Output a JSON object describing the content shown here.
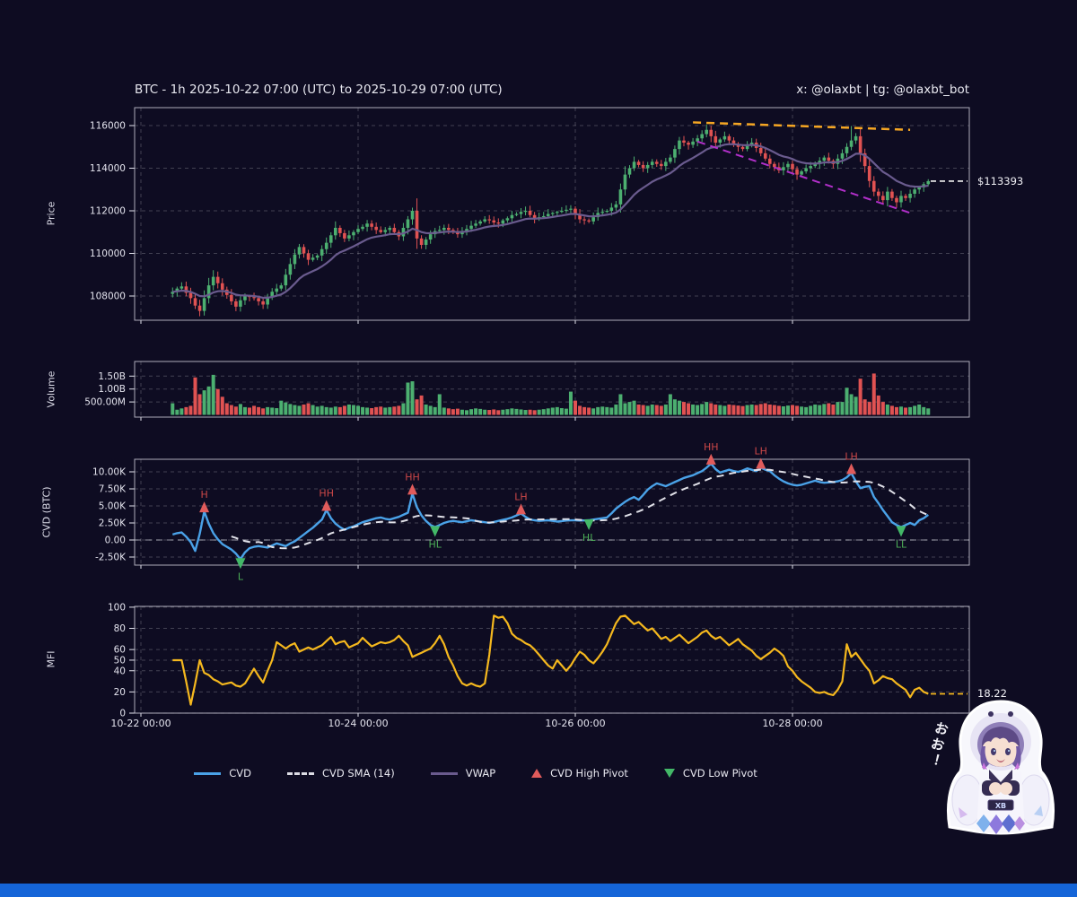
{
  "header": {
    "title": "BTC - 1h 2025-10-22 07:00 (UTC) to 2025-10-29 07:00 (UTC)",
    "handle": "x: @olaxbt | tg: @olaxbt_bot"
  },
  "panels": {
    "price": {
      "axis_title": "Price",
      "ticks": [
        {
          "v": 108000,
          "label": "108000"
        },
        {
          "v": 110000,
          "label": "110000"
        },
        {
          "v": 112000,
          "label": "112000"
        },
        {
          "v": 114000,
          "label": "114000"
        },
        {
          "v": 116000,
          "label": "116000"
        }
      ]
    },
    "volume": {
      "axis_title": "Volume",
      "ticks": [
        {
          "v": 500,
          "label": "500.00M"
        },
        {
          "v": 1000,
          "label": "1.00B"
        },
        {
          "v": 1500,
          "label": "1.50B"
        }
      ]
    },
    "cvd": {
      "axis_title": "CVD (BTC)",
      "ticks": [
        {
          "v": -2.5,
          "label": "-2.50K"
        },
        {
          "v": 0,
          "label": "0.00"
        },
        {
          "v": 2.5,
          "label": "2.50K"
        },
        {
          "v": 5,
          "label": "5.00K"
        },
        {
          "v": 7.5,
          "label": "7.50K"
        },
        {
          "v": 10,
          "label": "10.00K"
        }
      ]
    },
    "mfi": {
      "axis_title": "MFI",
      "ticks": [
        {
          "v": 0,
          "label": "0"
        },
        {
          "v": 20,
          "label": "20"
        },
        {
          "v": 40,
          "label": "40"
        },
        {
          "v": 50,
          "label": "50"
        },
        {
          "v": 60,
          "label": "60"
        },
        {
          "v": 80,
          "label": "80"
        },
        {
          "v": 100,
          "label": "100"
        }
      ]
    }
  },
  "x_axis": {
    "labels": [
      "10-22 00:00",
      "10-24 00:00",
      "10-26 00:00",
      "10-28 00:00"
    ]
  },
  "annotations": {
    "last_price": {
      "text": "$113393"
    },
    "mfi_last": {
      "text": "18.22"
    }
  },
  "legend": {
    "items": [
      {
        "label": "CVD",
        "swatch": "line",
        "color": "#4aa2e8"
      },
      {
        "label": "CVD SMA (14)",
        "swatch": "dashed-line",
        "color": "#dcdce4"
      },
      {
        "label": "VWAP",
        "swatch": "line",
        "color": "#6a5b8e"
      },
      {
        "label": "CVD High Pivot",
        "swatch": "triangle-up",
        "color": "#e05b5b"
      },
      {
        "label": "CVD Low Pivot",
        "swatch": "triangle-down",
        "color": "#43b868"
      }
    ]
  },
  "mascot": {
    "speech": "おお！",
    "badge": "XB"
  },
  "colors": {
    "background": "#0e0c22",
    "panel_border": "#c9c9d6",
    "grid": "rgba(255,255,255,0.22)",
    "text": "#e4e4ee",
    "candle_up": "#4caf70",
    "candle_down": "#e05252",
    "vwap": "#6a5b8e",
    "cvd": "#4aa2e8",
    "cvd_sma": "#e0e0e8",
    "pivot_high": "#e05b5b",
    "pivot_high_text": "#cc4848",
    "pivot_low": "#43b868",
    "pivot_low_text": "#4cae57",
    "mfi": "#f5b81e",
    "last_price_line": "#f2f2f2",
    "accent_bar": "#1565d8"
  },
  "chart_data": {
    "type": "multi-panel-financial",
    "symbol": "BTC",
    "interval": "1h",
    "range": "2025-10-22 07:00 (UTC) to 2025-10-29 07:00 (UTC)",
    "panels": [
      "price-candlestick-with-vwap",
      "volume-bar",
      "cvd-line-with-sma-and-pivots",
      "mfi-line"
    ],
    "x_grid_hours": [
      0,
      48,
      96,
      144
    ],
    "first_open": 108100,
    "last_price": 113393,
    "mfi_last": 18.22,
    "close": [
      108200,
      108350,
      108450,
      108150,
      107900,
      107550,
      107300,
      107900,
      108500,
      108900,
      108600,
      108300,
      108050,
      107750,
      107500,
      107800,
      108000,
      107950,
      107900,
      107750,
      107600,
      107950,
      108200,
      108350,
      108500,
      109000,
      109500,
      109950,
      110300,
      110000,
      109700,
      109800,
      109900,
      110200,
      110500,
      110850,
      111200,
      110950,
      110700,
      110850,
      111000,
      111150,
      111250,
      111400,
      111250,
      111100,
      111000,
      111100,
      111200,
      111000,
      110800,
      111200,
      111600,
      112000,
      110700,
      110400,
      110650,
      110900,
      111050,
      111100,
      111200,
      111100,
      111000,
      110900,
      111050,
      111150,
      111300,
      111400,
      111500,
      111600,
      111550,
      111450,
      111400,
      111550,
      111650,
      111800,
      111850,
      111950,
      112000,
      111800,
      111600,
      111700,
      111750,
      111850,
      111900,
      111950,
      112000,
      112050,
      112100,
      111850,
      111600,
      111550,
      111500,
      111700,
      111900,
      111950,
      112000,
      112150,
      112300,
      113000,
      113700,
      114000,
      114300,
      114150,
      114000,
      114150,
      114300,
      114200,
      114100,
      114300,
      114500,
      114900,
      115300,
      115200,
      115100,
      115250,
      115400,
      115600,
      115800,
      115500,
      115200,
      115350,
      115500,
      115300,
      115100,
      115000,
      114900,
      115050,
      115200,
      114950,
      114700,
      114450,
      114200,
      114050,
      113900,
      114050,
      114200,
      113950,
      113700,
      113850,
      114000,
      114100,
      114200,
      114350,
      114500,
      114350,
      114200,
      114450,
      114700,
      115000,
      115300,
      115500,
      114700,
      114100,
      113400,
      112900,
      112700,
      112500,
      112900,
      112600,
      112400,
      112700,
      112600,
      112800,
      113000,
      113100,
      113250,
      113393
    ],
    "wick_overrides": {
      "6": {
        "low": 107050
      },
      "53": {
        "high": 112150
      },
      "118": {
        "high": 116050
      },
      "150": {
        "high": 115980
      }
    },
    "volume_m": [
      450,
      200,
      250,
      300,
      350,
      1450,
      800,
      950,
      1100,
      1550,
      1000,
      700,
      450,
      380,
      320,
      420,
      300,
      280,
      350,
      300,
      250,
      300,
      280,
      260,
      550,
      480,
      420,
      380,
      350,
      400,
      450,
      380,
      320,
      350,
      300,
      280,
      320,
      300,
      350,
      400,
      380,
      350,
      300,
      280,
      260,
      300,
      320,
      280,
      300,
      320,
      350,
      450,
      1250,
      1300,
      600,
      750,
      400,
      350,
      300,
      800,
      280,
      250,
      220,
      240,
      200,
      180,
      220,
      250,
      230,
      200,
      190,
      210,
      180,
      200,
      220,
      250,
      230,
      210,
      190,
      200,
      180,
      200,
      220,
      250,
      280,
      300,
      260,
      240,
      900,
      550,
      350,
      300,
      280,
      250,
      300,
      320,
      300,
      280,
      400,
      800,
      450,
      500,
      550,
      400,
      380,
      350,
      400,
      380,
      350,
      400,
      800,
      600,
      550,
      500,
      450,
      400,
      380,
      420,
      500,
      450,
      400,
      380,
      350,
      400,
      380,
      360,
      340,
      380,
      400,
      380,
      420,
      450,
      400,
      380,
      350,
      330,
      360,
      380,
      350,
      320,
      300,
      350,
      400,
      380,
      420,
      450,
      400,
      500,
      500,
      1050,
      800,
      700,
      1400,
      600,
      500,
      1600,
      750,
      500,
      400,
      350,
      300,
      320,
      280,
      300,
      350,
      400,
      300,
      250
    ],
    "cvd_k": [
      0.8,
      1.0,
      1.1,
      0.5,
      -0.3,
      -1.6,
      0.9,
      4.2,
      2.4,
      1.0,
      0.1,
      -0.6,
      -1.0,
      -1.4,
      -2.0,
      -2.8,
      -1.8,
      -1.2,
      -1.0,
      -0.9,
      -1.0,
      -1.1,
      -0.8,
      -0.5,
      -0.7,
      -0.9,
      -0.5,
      -0.2,
      0.3,
      0.8,
      1.3,
      1.8,
      2.4,
      3.0,
      4.4,
      3.2,
      2.4,
      1.9,
      1.5,
      1.8,
      2.0,
      2.3,
      2.6,
      2.8,
      3.0,
      3.2,
      3.3,
      3.1,
      3.0,
      3.2,
      3.4,
      3.7,
      4.0,
      6.8,
      4.8,
      3.6,
      2.8,
      2.2,
      1.9,
      2.2,
      2.5,
      2.7,
      2.8,
      2.7,
      2.6,
      2.75,
      2.9,
      2.8,
      2.7,
      2.6,
      2.5,
      2.65,
      2.8,
      2.95,
      3.1,
      3.3,
      3.6,
      3.9,
      3.4,
      3.0,
      2.9,
      2.8,
      2.85,
      2.9,
      2.8,
      2.7,
      2.78,
      2.85,
      2.88,
      2.9,
      2.85,
      2.87,
      2.9,
      3.0,
      3.1,
      3.2,
      3.3,
      3.9,
      4.6,
      5.1,
      5.6,
      6.0,
      6.3,
      5.9,
      6.6,
      7.4,
      7.9,
      8.3,
      8.1,
      7.9,
      8.2,
      8.5,
      8.8,
      9.1,
      9.3,
      9.5,
      9.8,
      10.1,
      10.6,
      11.2,
      10.4,
      9.9,
      10.1,
      10.3,
      10.1,
      10.0,
      10.2,
      10.5,
      10.3,
      10.1,
      10.6,
      10.3,
      10.1,
      9.5,
      9.0,
      8.6,
      8.3,
      8.1,
      8.0,
      8.1,
      8.3,
      8.5,
      8.7,
      8.5,
      8.4,
      8.45,
      8.5,
      8.6,
      8.8,
      9.2,
      9.8,
      8.6,
      7.6,
      7.8,
      7.9,
      6.3,
      5.4,
      4.4,
      3.5,
      2.6,
      2.2,
      1.9,
      2.2,
      2.5,
      2.2,
      2.9,
      3.2,
      3.7
    ],
    "cvd_sma_window": 14,
    "pivots": [
      {
        "i": 7,
        "kind": "high",
        "label": "H"
      },
      {
        "i": 15,
        "kind": "low",
        "label": "L"
      },
      {
        "i": 34,
        "kind": "high",
        "label": "HH"
      },
      {
        "i": 53,
        "kind": "high",
        "label": "HH"
      },
      {
        "i": 58,
        "kind": "low",
        "label": "HL"
      },
      {
        "i": 77,
        "kind": "high",
        "label": "LH"
      },
      {
        "i": 92,
        "kind": "low",
        "label": "HL"
      },
      {
        "i": 119,
        "kind": "high",
        "label": "HH"
      },
      {
        "i": 130,
        "kind": "high",
        "label": "LH"
      },
      {
        "i": 150,
        "kind": "high",
        "label": "LH"
      },
      {
        "i": 161,
        "kind": "low",
        "label": "LL"
      }
    ],
    "mfi": [
      50,
      50,
      50,
      30,
      8,
      28,
      50,
      38,
      36,
      32,
      30,
      27,
      28,
      29,
      26,
      25,
      28,
      35,
      42,
      35,
      29,
      40,
      50,
      67,
      64,
      61,
      64,
      66,
      58,
      60,
      62,
      60,
      62,
      64,
      68,
      72,
      65,
      67,
      68,
      62,
      64,
      66,
      71,
      67,
      63,
      65,
      67,
      66,
      67,
      69,
      73,
      68,
      64,
      53,
      55,
      57,
      59,
      61,
      66,
      73,
      65,
      53,
      45,
      35,
      28,
      26,
      28,
      26,
      25,
      28,
      55,
      92,
      90,
      91,
      85,
      75,
      71,
      69,
      66,
      64,
      60,
      55,
      50,
      45,
      42,
      50,
      45,
      40,
      45,
      52,
      58,
      55,
      50,
      47,
      52,
      58,
      65,
      75,
      85,
      91,
      92,
      88,
      84,
      86,
      82,
      78,
      80,
      75,
      70,
      72,
      68,
      71,
      74,
      70,
      66,
      69,
      72,
      76,
      78,
      73,
      70,
      72,
      68,
      64,
      67,
      70,
      65,
      62,
      59,
      54,
      51,
      54,
      57,
      61,
      58,
      54,
      44,
      40,
      34,
      30,
      27,
      24,
      20,
      19,
      20,
      18,
      17,
      22,
      30,
      65,
      53,
      57,
      51,
      45,
      40,
      28,
      31,
      35,
      33,
      32,
      28,
      25,
      22,
      15,
      22,
      24,
      20,
      18.22
    ],
    "trendlines": [
      {
        "name": "resistance",
        "color": "#f5a623",
        "width": 2.5,
        "from": {
          "i": 115,
          "price": 116150
        },
        "to": {
          "i": 163,
          "price": 115800
        }
      },
      {
        "name": "support",
        "color": "#b12fc9",
        "width": 2,
        "from": {
          "i": 116,
          "price": 115250
        },
        "to": {
          "i": 163,
          "price": 111900
        }
      }
    ]
  }
}
